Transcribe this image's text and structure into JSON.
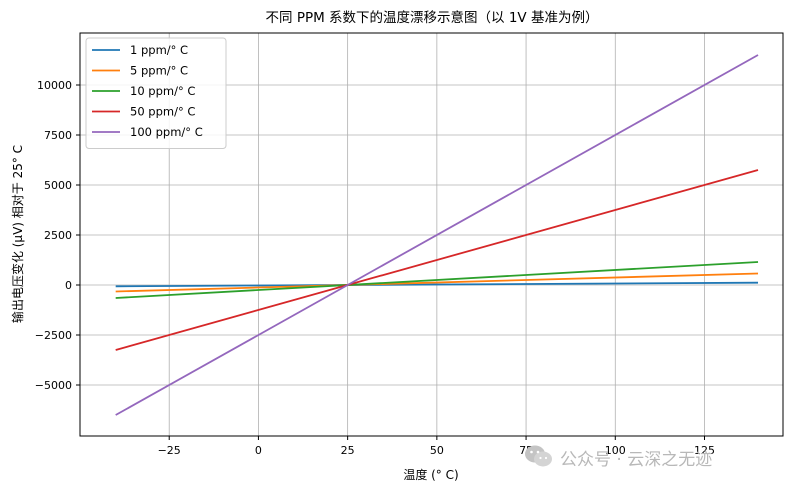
{
  "chart_data": {
    "type": "line",
    "title": "不同 PPM 系数下的温度漂移示意图（以 1V 基准为例）",
    "xlabel": "温度 (° C)",
    "ylabel": "输出电压变化 (μV) 相对于 25° C",
    "xlim": [
      -50,
      147
    ],
    "ylim": [
      -7550,
      12600
    ],
    "x_ticks": [
      -25,
      0,
      25,
      50,
      75,
      100,
      125
    ],
    "y_ticks": [
      -5000,
      -2500,
      0,
      2500,
      5000,
      7500,
      10000
    ],
    "x_tick_labels": [
      "−25",
      "0",
      "25",
      "50",
      "75",
      "100",
      "125"
    ],
    "y_tick_labels": [
      "−5000",
      "−2500",
      "0",
      "2500",
      "5000",
      "7500",
      "10000"
    ],
    "grid": true,
    "legend_position": "top-left",
    "x": [
      -40,
      140
    ],
    "series": [
      {
        "name": "1 ppm/° C",
        "color": "#1f77b4",
        "values": [
          -65,
          115
        ]
      },
      {
        "name": "5 ppm/° C",
        "color": "#ff7f0e",
        "values": [
          -325,
          575
        ]
      },
      {
        "name": "10 ppm/° C",
        "color": "#2ca02c",
        "values": [
          -650,
          1150
        ]
      },
      {
        "name": "50 ppm/° C",
        "color": "#d62728",
        "values": [
          -3250,
          5750
        ]
      },
      {
        "name": "100 ppm/° C",
        "color": "#9467bd",
        "values": [
          -6500,
          11500
        ]
      }
    ]
  },
  "watermark": {
    "text": "公众号 · 云深之无迹",
    "icon": "wechat-icon"
  }
}
